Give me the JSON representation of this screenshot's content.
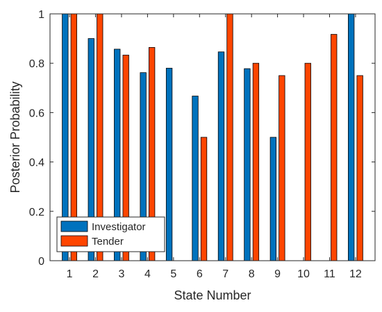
{
  "chart_data": {
    "type": "bar",
    "title": "",
    "xlabel": "State Number",
    "ylabel": "Posterior Probability",
    "categories": [
      "1",
      "2",
      "3",
      "4",
      "5",
      "6",
      "7",
      "8",
      "9",
      "10",
      "11",
      "12"
    ],
    "ylim": [
      0,
      1
    ],
    "yticks": [
      "0",
      "0.2",
      "0.4",
      "0.6",
      "0.8",
      "1"
    ],
    "series": [
      {
        "name": "Investigator",
        "color": "#0072BD",
        "values": [
          1,
          0.9,
          0.857,
          0.762,
          0.78,
          0.667,
          0.846,
          0.778,
          0.5,
          0,
          0,
          1
        ]
      },
      {
        "name": "Tender",
        "color": "#FF4500",
        "values": [
          1,
          1,
          0.833,
          0.864,
          0,
          0.5,
          1,
          0.8,
          0.75,
          0.8,
          0.917,
          0.75
        ]
      }
    ],
    "legend_position": "bottom-left",
    "grid": false
  }
}
